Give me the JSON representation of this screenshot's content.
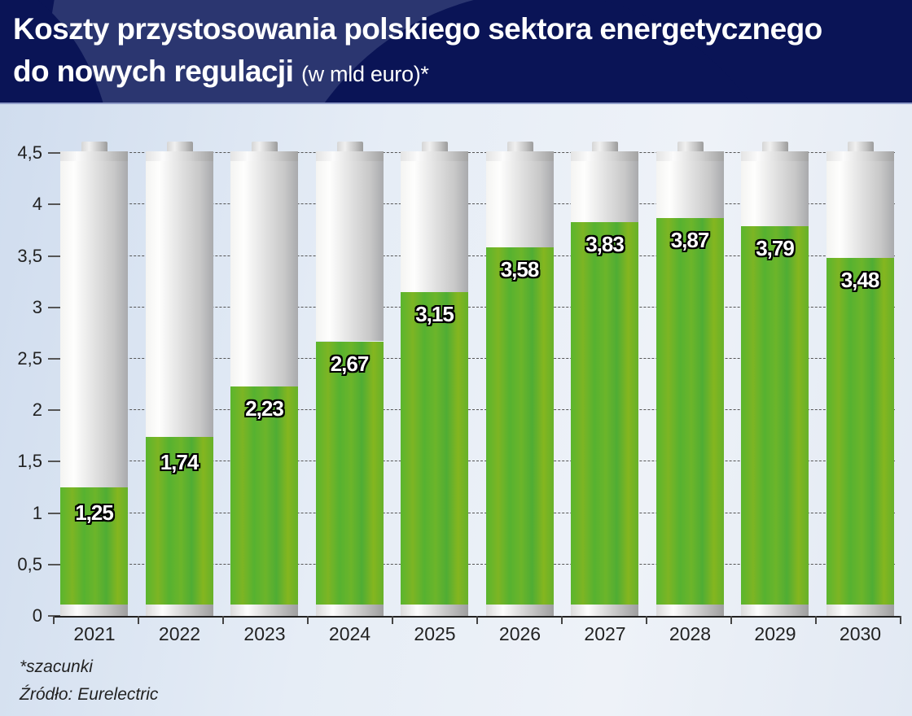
{
  "header": {
    "title_main_line1": "Koszty przystosowania polskiego sektora energetycznego",
    "title_main_line2": "do nowych regulacji",
    "title_unit": "(w mld euro)*"
  },
  "footnotes": {
    "note": "*szacunki",
    "source": "Źródło: Eurelectric"
  },
  "colors": {
    "header_bg": "#0a1456",
    "fill_green": "#5ab52e",
    "battery_grey": "#dedede"
  },
  "chart_data": {
    "type": "bar",
    "title": "Koszty przystosowania polskiego sektora energetycznego do nowych regulacji (w mld euro)*",
    "xlabel": "",
    "ylabel": "mld euro",
    "categories": [
      "2021",
      "2022",
      "2023",
      "2024",
      "2025",
      "2026",
      "2027",
      "2028",
      "2029",
      "2030"
    ],
    "values": [
      1.25,
      1.74,
      2.23,
      2.67,
      3.15,
      3.58,
      3.83,
      3.87,
      3.79,
      3.48
    ],
    "value_labels": [
      "1,25",
      "1,74",
      "2,23",
      "2,67",
      "3,15",
      "3,58",
      "3,83",
      "3,87",
      "3,79",
      "3,48"
    ],
    "ylim": [
      0,
      4.5
    ],
    "yticks": [
      0,
      0.5,
      1,
      1.5,
      2,
      2.5,
      3,
      3.5,
      4,
      4.5
    ],
    "ytick_labels": [
      "0",
      "0,5",
      "1",
      "1,5",
      "2",
      "2,5",
      "3",
      "3,5",
      "4",
      "4,5"
    ],
    "grid": true,
    "legend": null,
    "annotations": [
      "*szacunki",
      "Źródło: Eurelectric"
    ],
    "style": "bars drawn as batteries filled with green to the value level"
  }
}
